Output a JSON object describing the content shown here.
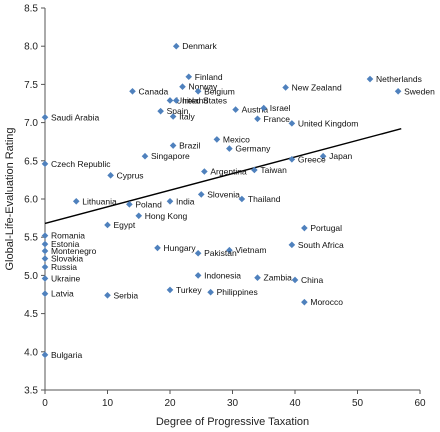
{
  "chart_data": {
    "type": "scatter",
    "xlabel": "Degree of Progressive Taxation",
    "ylabel": "Global-Life-Evaluation Rating",
    "xlim": [
      0,
      60
    ],
    "ylim": [
      3.5,
      8.5
    ],
    "xticks": [
      "0",
      "10",
      "20",
      "30",
      "40",
      "50",
      "60"
    ],
    "yticks": [
      "3.5",
      "4.0",
      "4.5",
      "5.0",
      "5.5",
      "6.0",
      "6.5",
      "7.0",
      "7.5",
      "8.0",
      "8.5"
    ],
    "marker_color": "#4f81bd",
    "trendline": {
      "x": [
        0,
        57
      ],
      "y": [
        5.68,
        6.92
      ]
    },
    "points": [
      {
        "label": "Denmark",
        "x": 21,
        "y": 8.0
      },
      {
        "label": "Finland",
        "x": 23,
        "y": 7.6
      },
      {
        "label": "Norway",
        "x": 22,
        "y": 7.47
      },
      {
        "label": "Netherlands",
        "x": 52,
        "y": 7.57
      },
      {
        "label": "Canada",
        "x": 14,
        "y": 7.41
      },
      {
        "label": "Belgium",
        "x": 24.5,
        "y": 7.41
      },
      {
        "label": "New Zealand",
        "x": 38.5,
        "y": 7.46
      },
      {
        "label": "Sweden",
        "x": 56.5,
        "y": 7.41
      },
      {
        "label": "United States",
        "x": 20,
        "y": 7.29
      },
      {
        "label": "Ireland",
        "x": 21,
        "y": 7.29
      },
      {
        "label": "Austria",
        "x": 30.5,
        "y": 7.17
      },
      {
        "label": "Israel",
        "x": 35,
        "y": 7.19
      },
      {
        "label": "Spain",
        "x": 18.5,
        "y": 7.15
      },
      {
        "label": "Saudi Arabia",
        "x": 0,
        "y": 7.07
      },
      {
        "label": "Italy",
        "x": 20.5,
        "y": 7.08
      },
      {
        "label": "France",
        "x": 34,
        "y": 7.05
      },
      {
        "label": "United Kingdom",
        "x": 39.5,
        "y": 6.99
      },
      {
        "label": "Mexico",
        "x": 27.5,
        "y": 6.78
      },
      {
        "label": "Brazil",
        "x": 20.5,
        "y": 6.7
      },
      {
        "label": "Germany",
        "x": 29.5,
        "y": 6.66
      },
      {
        "label": "Singapore",
        "x": 16,
        "y": 6.56
      },
      {
        "label": "Japan",
        "x": 44.5,
        "y": 6.56
      },
      {
        "label": "Greece",
        "x": 39.5,
        "y": 6.52
      },
      {
        "label": "Czech Republic",
        "x": 0,
        "y": 6.46
      },
      {
        "label": "Argentina",
        "x": 25.5,
        "y": 6.36
      },
      {
        "label": "Taiwan",
        "x": 33.5,
        "y": 6.38
      },
      {
        "label": "Cyprus",
        "x": 10.5,
        "y": 6.31
      },
      {
        "label": "Lithuania",
        "x": 5,
        "y": 5.97
      },
      {
        "label": "Poland",
        "x": 13.5,
        "y": 5.93
      },
      {
        "label": "India",
        "x": 20,
        "y": 5.97
      },
      {
        "label": "Slovenia",
        "x": 25,
        "y": 6.06
      },
      {
        "label": "Thailand",
        "x": 31.5,
        "y": 6.0
      },
      {
        "label": "Hong Kong",
        "x": 15,
        "y": 5.78
      },
      {
        "label": "Egypt",
        "x": 10,
        "y": 5.66
      },
      {
        "label": "Portugal",
        "x": 41.5,
        "y": 5.62
      },
      {
        "label": "Romania",
        "x": 0,
        "y": 5.52
      },
      {
        "label": "South Africa",
        "x": 39.5,
        "y": 5.4
      },
      {
        "label": "Estonia",
        "x": 0,
        "y": 5.41
      },
      {
        "label": "Montenegro",
        "x": 0,
        "y": 5.32
      },
      {
        "label": "Hungary",
        "x": 18,
        "y": 5.36
      },
      {
        "label": "Vietnam",
        "x": 29.5,
        "y": 5.33
      },
      {
        "label": "Pakistan",
        "x": 24.5,
        "y": 5.29
      },
      {
        "label": "Slovakia",
        "x": 0,
        "y": 5.22
      },
      {
        "label": "Russia",
        "x": 0,
        "y": 5.11
      },
      {
        "label": "Indonesia",
        "x": 24.5,
        "y": 5.0
      },
      {
        "label": "Zambia",
        "x": 34,
        "y": 4.97
      },
      {
        "label": "Ukraine",
        "x": 0,
        "y": 4.96
      },
      {
        "label": "China",
        "x": 40,
        "y": 4.94
      },
      {
        "label": "Latvia",
        "x": 0,
        "y": 4.76
      },
      {
        "label": "Serbia",
        "x": 10,
        "y": 4.74
      },
      {
        "label": "Turkey",
        "x": 20,
        "y": 4.81
      },
      {
        "label": "Philippines",
        "x": 26.5,
        "y": 4.78
      },
      {
        "label": "Morocco",
        "x": 41.5,
        "y": 4.65
      },
      {
        "label": "Bulgaria",
        "x": 0,
        "y": 3.96
      }
    ]
  }
}
